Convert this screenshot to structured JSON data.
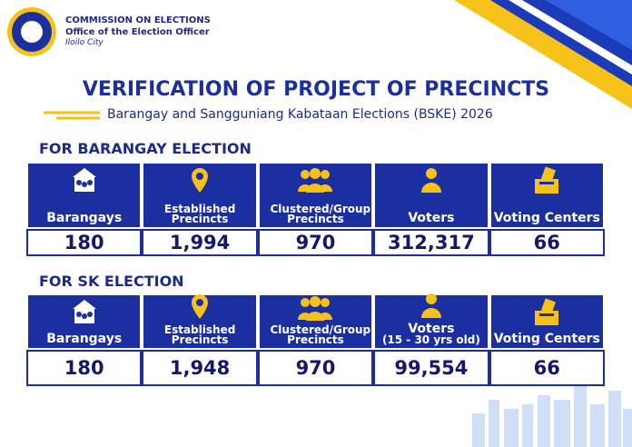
{
  "header": {
    "org": "COMMISSION ON ELECTIONS",
    "office": "Office of the Election Officer",
    "city": "Iloilo City"
  },
  "title": "VERIFICATION OF PROJECT OF PRECINCTS",
  "subtitle": "Barangay and Sangguniang Kabataan Elections (BSKE) 2026",
  "sections": [
    {
      "heading": "FOR BARANGAY ELECTION",
      "headers": [
        "Barangays",
        "Established Precincts",
        "Clustered/Group Precincts",
        "Voters",
        "Voting Centers"
      ],
      "values": [
        "180",
        "1,994",
        "970",
        "312,317",
        "66"
      ]
    },
    {
      "heading": "FOR SK ELECTION",
      "headers": [
        "Barangays",
        "Established Precincts",
        "Clustered/Group Precincts",
        "Voters",
        "Voting Centers"
      ],
      "voters_note": "(15 - 30 yrs old)",
      "values": [
        "180",
        "1,948",
        "970",
        "99,554",
        "66"
      ]
    }
  ]
}
